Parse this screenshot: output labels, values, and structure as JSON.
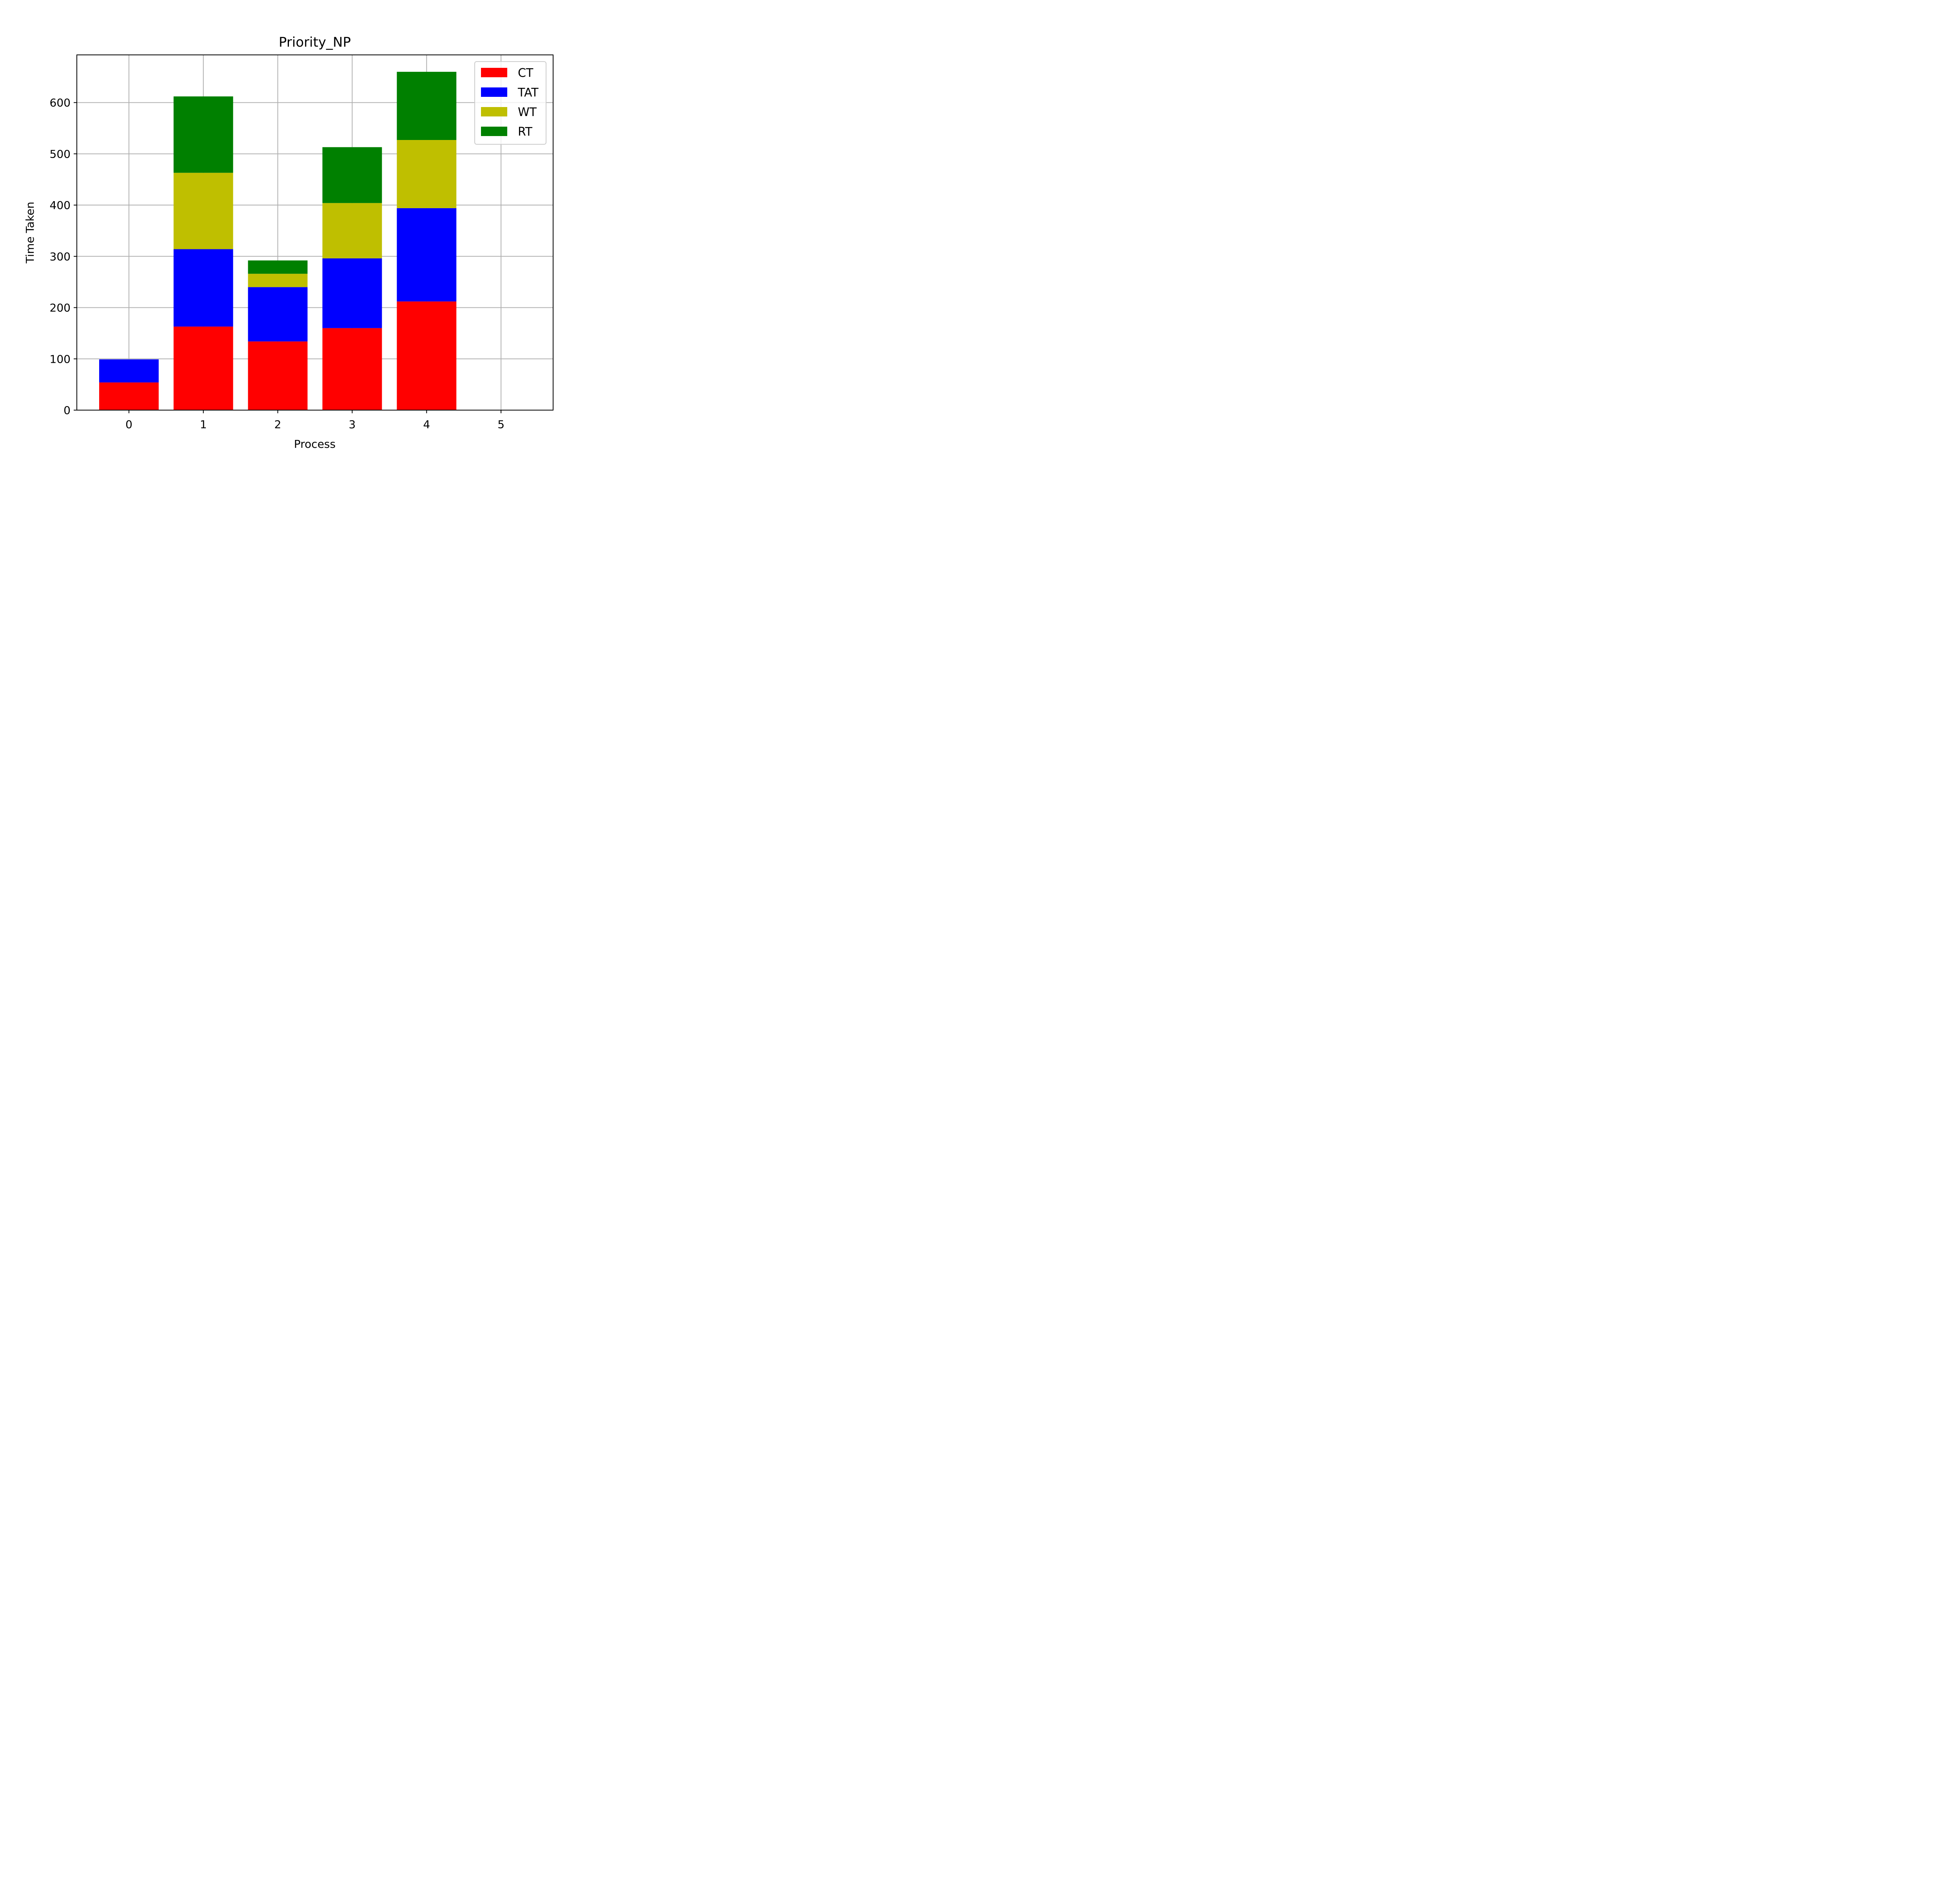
{
  "chart_data": {
    "type": "bar",
    "stacked": true,
    "title": "Priority_NP",
    "xlabel": "Process",
    "ylabel": "Time Taken",
    "x_ticks": [
      "0",
      "1",
      "2",
      "3",
      "4",
      "5"
    ],
    "categories": [
      0,
      1,
      2,
      3,
      4
    ],
    "xlim": [
      -0.7,
      5.7
    ],
    "ylim": [
      0,
      693
    ],
    "y_ticks": [
      0,
      100,
      200,
      300,
      400,
      500,
      600
    ],
    "grid": true,
    "legend_position": "top-right",
    "series": [
      {
        "name": "CT",
        "color": "#ff0000",
        "values": [
          54,
          163,
          134,
          160,
          212
        ]
      },
      {
        "name": "TAT",
        "color": "#0000ff",
        "values": [
          45,
          151,
          106,
          136,
          182
        ]
      },
      {
        "name": "WT",
        "color": "#bfbf00",
        "values": [
          0,
          149,
          26,
          108,
          133
        ]
      },
      {
        "name": "RT",
        "color": "#008000",
        "values": [
          0,
          149,
          26,
          109,
          133
        ]
      }
    ]
  }
}
